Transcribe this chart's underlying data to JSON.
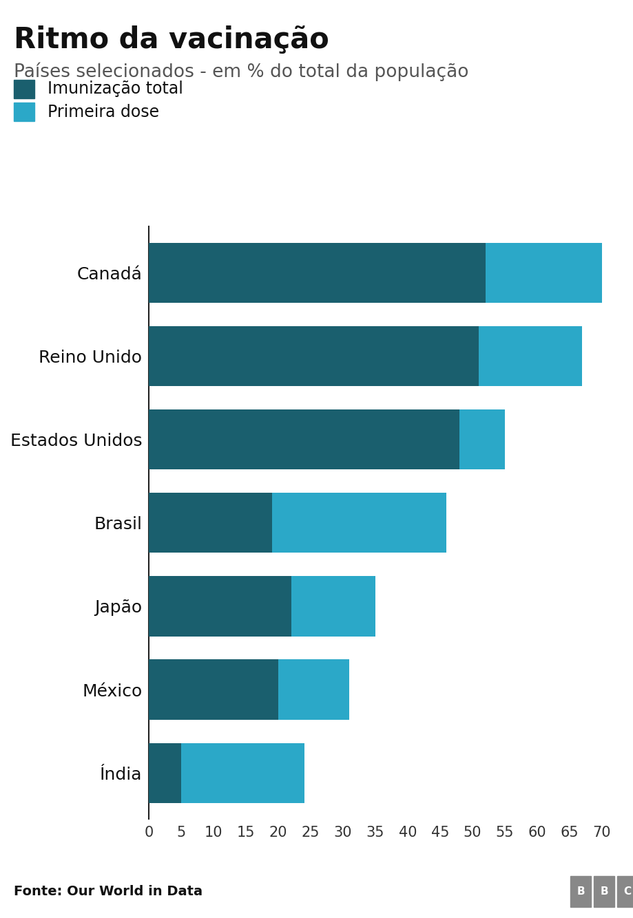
{
  "title": "Ritmo da vacinação",
  "subtitle": "Países selecionados - em % do total da população",
  "legend_total": "Imunização total",
  "legend_first": "Primeira dose",
  "source": "Fonte: Our World in Data",
  "countries": [
    "Canadá",
    "Reino Unido",
    "Estados Unidos",
    "Brasil",
    "Japão",
    "México",
    "Índia"
  ],
  "imunizacao_total": [
    52,
    51,
    48,
    19,
    22,
    20,
    5
  ],
  "primeira_dose": [
    18,
    16,
    7,
    27,
    13,
    11,
    19
  ],
  "color_total": "#1a5f6e",
  "color_first": "#2ba8c8",
  "xlim": [
    0,
    72
  ],
  "xticks": [
    0,
    5,
    10,
    15,
    20,
    25,
    30,
    35,
    40,
    45,
    50,
    55,
    60,
    65,
    70
  ],
  "background_color": "#ffffff",
  "footer_bg": "#d0d0d0",
  "title_fontsize": 30,
  "subtitle_fontsize": 19,
  "label_fontsize": 18,
  "legend_fontsize": 17,
  "tick_fontsize": 15,
  "source_fontsize": 14,
  "bar_height": 0.72
}
